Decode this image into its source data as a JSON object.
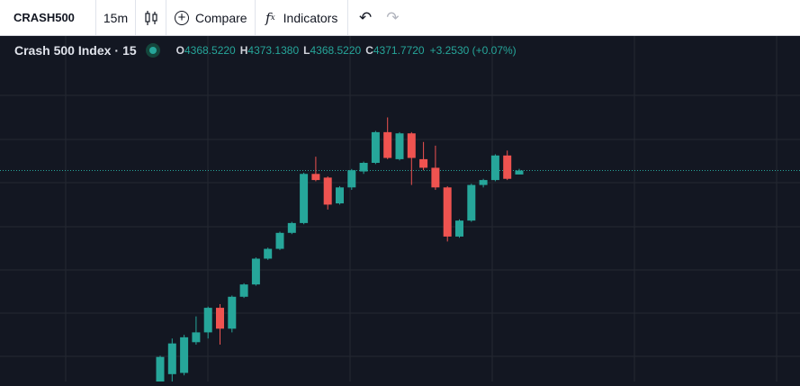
{
  "toolbar": {
    "symbol": "CRASH500",
    "interval": "15m",
    "chart_type_icon": "candles-icon",
    "compare_label": "Compare",
    "indicators_label": "Indicators",
    "undo_icon": "undo-icon",
    "redo_icon": "redo-icon"
  },
  "legend": {
    "title": "Crash 500 Index",
    "separator": "·",
    "interval": "15",
    "o_key": "O",
    "o_val": "4368.5220",
    "h_key": "H",
    "h_val": "4373.1380",
    "l_key": "L",
    "l_val": "4368.5220",
    "c_key": "C",
    "c_val": "4371.7720",
    "change": "+3.2530 (+0.07%)"
  },
  "colors": {
    "background": "#131722",
    "grid": "#242832",
    "up": "#26a69a",
    "down": "#ef5350",
    "price_line": "#26a69a"
  },
  "chart_data": {
    "type": "candlestick",
    "ylim": [
      4200,
      4430
    ],
    "last_price": 4371.772,
    "price_line": "dotted",
    "grid": true,
    "candles": [
      {
        "o": 4200,
        "h": 4221,
        "l": 4190,
        "c": 4220
      },
      {
        "o": 4206,
        "h": 4235,
        "l": 4188,
        "c": 4231
      },
      {
        "o": 4207,
        "h": 4238,
        "l": 4205,
        "c": 4236
      },
      {
        "o": 4232,
        "h": 4253,
        "l": 4230,
        "c": 4240
      },
      {
        "o": 4240,
        "h": 4261,
        "l": 4235,
        "c": 4260
      },
      {
        "o": 4260,
        "h": 4263,
        "l": 4230,
        "c": 4243
      },
      {
        "o": 4243,
        "h": 4270,
        "l": 4240,
        "c": 4269
      },
      {
        "o": 4269,
        "h": 4280,
        "l": 4268,
        "c": 4279
      },
      {
        "o": 4279,
        "h": 4301,
        "l": 4278,
        "c": 4300
      },
      {
        "o": 4300,
        "h": 4309,
        "l": 4299,
        "c": 4308
      },
      {
        "o": 4308,
        "h": 4322,
        "l": 4307,
        "c": 4321
      },
      {
        "o": 4321,
        "h": 4330,
        "l": 4320,
        "c": 4329
      },
      {
        "o": 4329,
        "h": 4370,
        "l": 4328,
        "c": 4369
      },
      {
        "o": 4369,
        "h": 4383,
        "l": 4363,
        "c": 4364
      },
      {
        "o": 4366,
        "h": 4367,
        "l": 4340,
        "c": 4344
      },
      {
        "o": 4345,
        "h": 4359,
        "l": 4344,
        "c": 4358
      },
      {
        "o": 4358,
        "h": 4373,
        "l": 4356,
        "c": 4372
      },
      {
        "o": 4371,
        "h": 4379,
        "l": 4369,
        "c": 4378
      },
      {
        "o": 4378,
        "h": 4404,
        "l": 4377,
        "c": 4403
      },
      {
        "o": 4403,
        "h": 4415,
        "l": 4381,
        "c": 4382
      },
      {
        "o": 4381,
        "h": 4403,
        "l": 4380,
        "c": 4402
      },
      {
        "o": 4402,
        "h": 4403,
        "l": 4360,
        "c": 4382
      },
      {
        "o": 4381,
        "h": 4395,
        "l": 4372,
        "c": 4374
      },
      {
        "o": 4374,
        "h": 4392,
        "l": 4356,
        "c": 4358
      },
      {
        "o": 4358,
        "h": 4359,
        "l": 4314,
        "c": 4318
      },
      {
        "o": 4318,
        "h": 4332,
        "l": 4317,
        "c": 4331
      },
      {
        "o": 4331,
        "h": 4361,
        "l": 4330,
        "c": 4360
      },
      {
        "o": 4360,
        "h": 4365,
        "l": 4358,
        "c": 4364
      },
      {
        "o": 4364,
        "h": 4385,
        "l": 4363,
        "c": 4384
      },
      {
        "o": 4384,
        "h": 4388,
        "l": 4364,
        "c": 4365
      },
      {
        "o": 4368.522,
        "h": 4373.138,
        "l": 4368.522,
        "c": 4371.772
      }
    ]
  }
}
